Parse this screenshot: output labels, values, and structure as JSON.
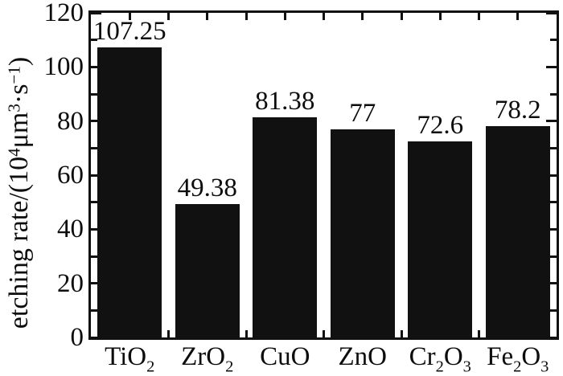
{
  "figure": {
    "background": "#ffffff",
    "ink_color": "#111111"
  },
  "chart_data": {
    "type": "bar",
    "title": "",
    "xlabel": "",
    "ylabel": "etching rate/(10⁴μm³·s⁻¹)",
    "ylabel_parts": [
      {
        "t": "etching rate/(10"
      },
      {
        "sup": "4"
      },
      {
        "t": "μm"
      },
      {
        "sup": "3"
      },
      {
        "t": "·s"
      },
      {
        "sup": "−1"
      },
      {
        "t": ")"
      }
    ],
    "categories": [
      "TiO2",
      "ZrO2",
      "CuO",
      "ZnO",
      "Cr2O3",
      "Fe2O3"
    ],
    "category_parts": [
      [
        {
          "t": "TiO"
        },
        {
          "sub": "2"
        }
      ],
      [
        {
          "t": "ZrO"
        },
        {
          "sub": "2"
        }
      ],
      [
        {
          "t": "CuO"
        }
      ],
      [
        {
          "t": "ZnO"
        }
      ],
      [
        {
          "t": "Cr"
        },
        {
          "sub": "2"
        },
        {
          "t": "O"
        },
        {
          "sub": "3"
        }
      ],
      [
        {
          "t": "Fe"
        },
        {
          "sub": "2"
        },
        {
          "t": "O"
        },
        {
          "sub": "3"
        }
      ]
    ],
    "values": [
      107.25,
      49.38,
      81.38,
      77,
      72.6,
      78.2
    ],
    "value_labels": [
      "107.25",
      "49.38",
      "81.38",
      "77",
      "72.6",
      "78.2"
    ],
    "ylim": [
      0,
      120
    ],
    "yticks_major": [
      0,
      20,
      40,
      60,
      80,
      100,
      120
    ],
    "yticks_minor": [
      10,
      30,
      50,
      70,
      90,
      110
    ],
    "bar_color": "#111111",
    "axis_color": "#111111",
    "background": "#ffffff",
    "grid": false,
    "legend": null,
    "frame": "box",
    "tick_direction": "in"
  }
}
